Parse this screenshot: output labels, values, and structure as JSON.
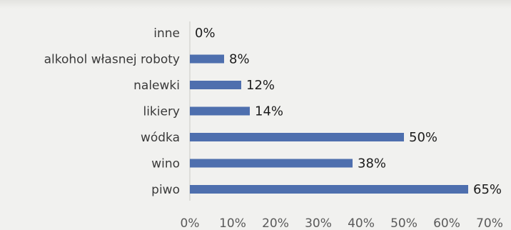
{
  "chart_data": {
    "type": "bar",
    "orientation": "horizontal",
    "categories": [
      "inne",
      "alkohol własnej roboty",
      "nalewki",
      "likiery",
      "wódka",
      "wino",
      "piwo"
    ],
    "values": [
      0,
      8,
      12,
      14,
      50,
      38,
      65
    ],
    "value_labels": [
      "0%",
      "8%",
      "12%",
      "14%",
      "50%",
      "38%",
      "65%"
    ],
    "x_ticks": [
      "0%",
      "10%",
      "20%",
      "30%",
      "40%",
      "50%",
      "60%",
      "70%"
    ],
    "xlim": [
      0,
      70
    ],
    "title": "",
    "xlabel": "",
    "ylabel": "",
    "grid": false,
    "legend": "none",
    "bar_color": "#4e6fae"
  }
}
